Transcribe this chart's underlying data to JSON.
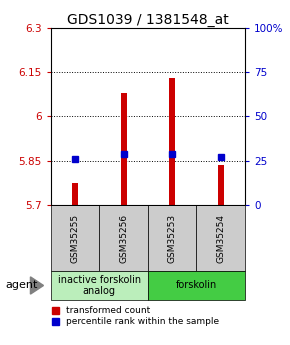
{
  "title": "GDS1039 / 1381548_at",
  "samples": [
    "GSM35255",
    "GSM35256",
    "GSM35253",
    "GSM35254"
  ],
  "bar_values": [
    5.775,
    6.08,
    6.13,
    5.835
  ],
  "percentile_values": [
    5.855,
    5.873,
    5.873,
    5.862
  ],
  "bar_color": "#cc0000",
  "percentile_color": "#0000cc",
  "ylim_left": [
    5.7,
    6.3
  ],
  "ylim_right": [
    0,
    100
  ],
  "yticks_left": [
    5.7,
    5.85,
    6.0,
    6.15,
    6.3
  ],
  "ytick_labels_left": [
    "5.7",
    "5.85",
    "6",
    "6.15",
    "6.3"
  ],
  "yticks_right": [
    0,
    25,
    50,
    75,
    100
  ],
  "ytick_labels_right": [
    "0",
    "25",
    "50",
    "75",
    "100%"
  ],
  "groups": [
    {
      "label": "inactive forskolin\nanalog",
      "indices": [
        0,
        1
      ],
      "color": "#bbeebb"
    },
    {
      "label": "forskolin",
      "indices": [
        2,
        3
      ],
      "color": "#44cc44"
    }
  ],
  "agent_label": "agent",
  "legend_bar_label": "transformed count",
  "legend_pct_label": "percentile rank within the sample",
  "background_color": "#ffffff",
  "title_fontsize": 10,
  "tick_fontsize": 7.5,
  "sample_fontsize": 6.5,
  "group_fontsize": 7,
  "bar_width": 0.12,
  "dotted_yticks": [
    5.85,
    6.0,
    6.15
  ],
  "gray_color": "#cccccc"
}
